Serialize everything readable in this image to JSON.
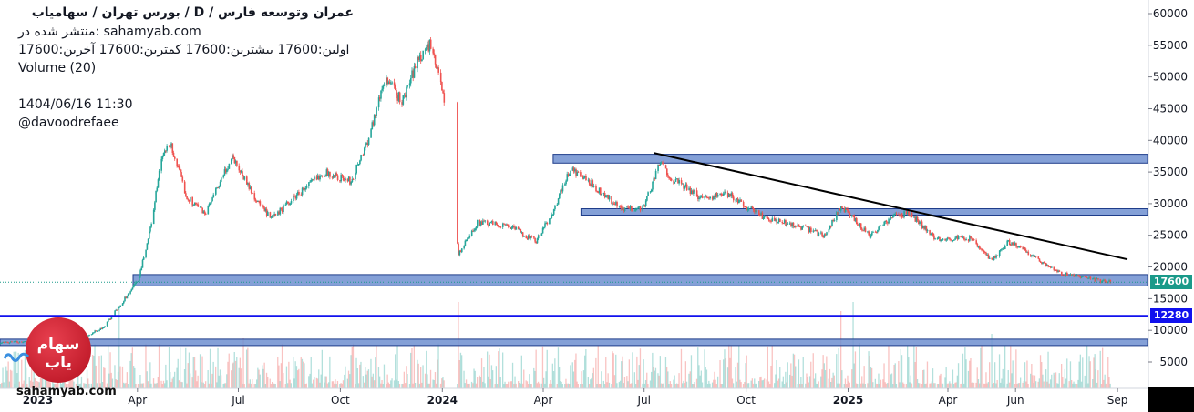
{
  "header": {
    "title": "عمران وتوسعه فارس / D / بورس تهران / سهامیاب",
    "published": "منتشر شده در: sahamyab.com",
    "ohlc": "اولین:17600  بیشترین:17600  کمترین:17600  آخرین:17600",
    "volume_label": "Volume (20)",
    "datetime": "1404/06/16 11:30",
    "author": "@davoodrefaee"
  },
  "logo": {
    "text": "سهام یاب",
    "brand": "sahamyab.com"
  },
  "price_tags": {
    "last": "17600",
    "level": "12280"
  },
  "colors": {
    "up": "#26a69a",
    "down": "#ef5350",
    "zone_fill": "#6f8fd0",
    "zone_border": "#1f3d8a",
    "level_line": "#1111ee",
    "trendline": "#000000",
    "last_tag": "#1a9a8a",
    "level_tag": "#1111ee"
  },
  "chart_data": {
    "type": "candlestick",
    "x_labels": [
      "2023",
      "Apr",
      "Jul",
      "Oct",
      "2024",
      "Apr",
      "Jul",
      "Oct",
      "2025",
      "Apr",
      "Jun",
      "Sep"
    ],
    "y_ticks": [
      5000,
      10000,
      15000,
      20000,
      25000,
      30000,
      35000,
      40000,
      45000,
      50000,
      55000,
      60000
    ],
    "ylim": [
      0,
      62000
    ],
    "price_path": [
      [
        "2022-11-28",
        8000
      ],
      [
        "2023-01-10",
        8500
      ],
      [
        "2023-02-10",
        8900
      ],
      [
        "2023-03-01",
        10500
      ],
      [
        "2023-03-20",
        15000
      ],
      [
        "2023-04-01",
        18000
      ],
      [
        "2023-04-12",
        26000
      ],
      [
        "2023-04-22",
        37000
      ],
      [
        "2023-04-30",
        39500
      ],
      [
        "2023-05-15",
        31000
      ],
      [
        "2023-06-01",
        28500
      ],
      [
        "2023-06-25",
        37500
      ],
      [
        "2023-07-15",
        31000
      ],
      [
        "2023-07-30",
        27500
      ],
      [
        "2023-08-20",
        31000
      ],
      [
        "2023-09-15",
        35000
      ],
      [
        "2023-10-10",
        33500
      ],
      [
        "2023-10-25",
        40000
      ],
      [
        "2023-11-10",
        50000
      ],
      [
        "2023-11-25",
        46000
      ],
      [
        "2023-12-10",
        53000
      ],
      [
        "2023-12-20",
        55000
      ],
      [
        "2024-01-01",
        48000
      ],
      [
        "2024-01-15",
        22000
      ],
      [
        "2024-02-01",
        27000
      ],
      [
        "2024-03-01",
        26500
      ],
      [
        "2024-03-25",
        24000
      ],
      [
        "2024-04-10",
        29000
      ],
      [
        "2024-04-25",
        35500
      ],
      [
        "2024-05-15",
        33000
      ],
      [
        "2024-06-10",
        29000
      ],
      [
        "2024-06-30",
        29500
      ],
      [
        "2024-07-15",
        36500
      ],
      [
        "2024-07-25",
        34000
      ],
      [
        "2024-08-20",
        31000
      ],
      [
        "2024-09-15",
        31500
      ],
      [
        "2024-10-01",
        29500
      ],
      [
        "2024-10-20",
        27500
      ],
      [
        "2024-11-15",
        26500
      ],
      [
        "2024-12-10",
        25000
      ],
      [
        "2024-12-25",
        29500
      ],
      [
        "2025-01-20",
        25000
      ],
      [
        "2025-02-10",
        28000
      ],
      [
        "2025-02-25",
        28500
      ],
      [
        "2025-03-20",
        24500
      ],
      [
        "2025-04-20",
        24500
      ],
      [
        "2025-05-10",
        21000
      ],
      [
        "2025-05-25",
        24000
      ],
      [
        "2025-06-10",
        22500
      ],
      [
        "2025-07-10",
        19000
      ],
      [
        "2025-08-10",
        18000
      ],
      [
        "2025-08-25",
        17600
      ]
    ],
    "gaps": [
      [
        "2024-01-02",
        "2024-01-14"
      ]
    ],
    "volume_spikes": [
      [
        "2023-03-15",
        0.9
      ],
      [
        "2024-01-15",
        0.95
      ],
      [
        "2024-12-20",
        1.0
      ],
      [
        "2024-12-25",
        0.85
      ],
      [
        "2025-01-05",
        0.95
      ],
      [
        "2025-05-10",
        0.6
      ],
      [
        "2023-04-28",
        0.7
      ],
      [
        "2023-07-05",
        0.55
      ]
    ],
    "zones": [
      {
        "from": "2024-04-10",
        "to": "end",
        "low": 36400,
        "high": 37800
      },
      {
        "from": "2024-05-05",
        "to": "end",
        "low": 28200,
        "high": 29200
      },
      {
        "from": "2023-03-28",
        "to": "end",
        "low": 17000,
        "high": 18800
      },
      {
        "from": "2022-11-28",
        "to": "end",
        "low": 7600,
        "high": 8600
      }
    ],
    "horizontal_levels": [
      12280
    ],
    "trendline": {
      "from": [
        "2024-07-10",
        38000
      ],
      "to": [
        "2025-09-10",
        21200
      ]
    },
    "last_price": 17600
  }
}
